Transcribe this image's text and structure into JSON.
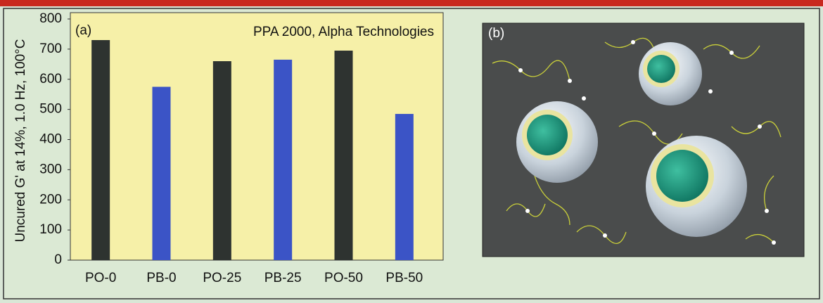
{
  "chart_data": {
    "type": "bar",
    "panel_label": "(a)",
    "annotation": "PPA 2000, Alpha Technologies",
    "y_label": "Uncured G' at 14%, 1.0 Hz, 100°C",
    "categories": [
      "PO-0",
      "PB-0",
      "PO-25",
      "PB-25",
      "PO-50",
      "PB-50"
    ],
    "values": [
      730,
      575,
      660,
      665,
      695,
      485
    ],
    "colors": [
      "#2e3330",
      "#3b54c6",
      "#2e3330",
      "#3b54c6",
      "#2e3330",
      "#3b54c6"
    ],
    "ylim": [
      0,
      800
    ],
    "yticks": [
      0,
      100,
      200,
      300,
      400,
      500,
      600,
      700,
      800
    ],
    "grid": false
  },
  "illustration": {
    "panel_label": "(b)"
  }
}
